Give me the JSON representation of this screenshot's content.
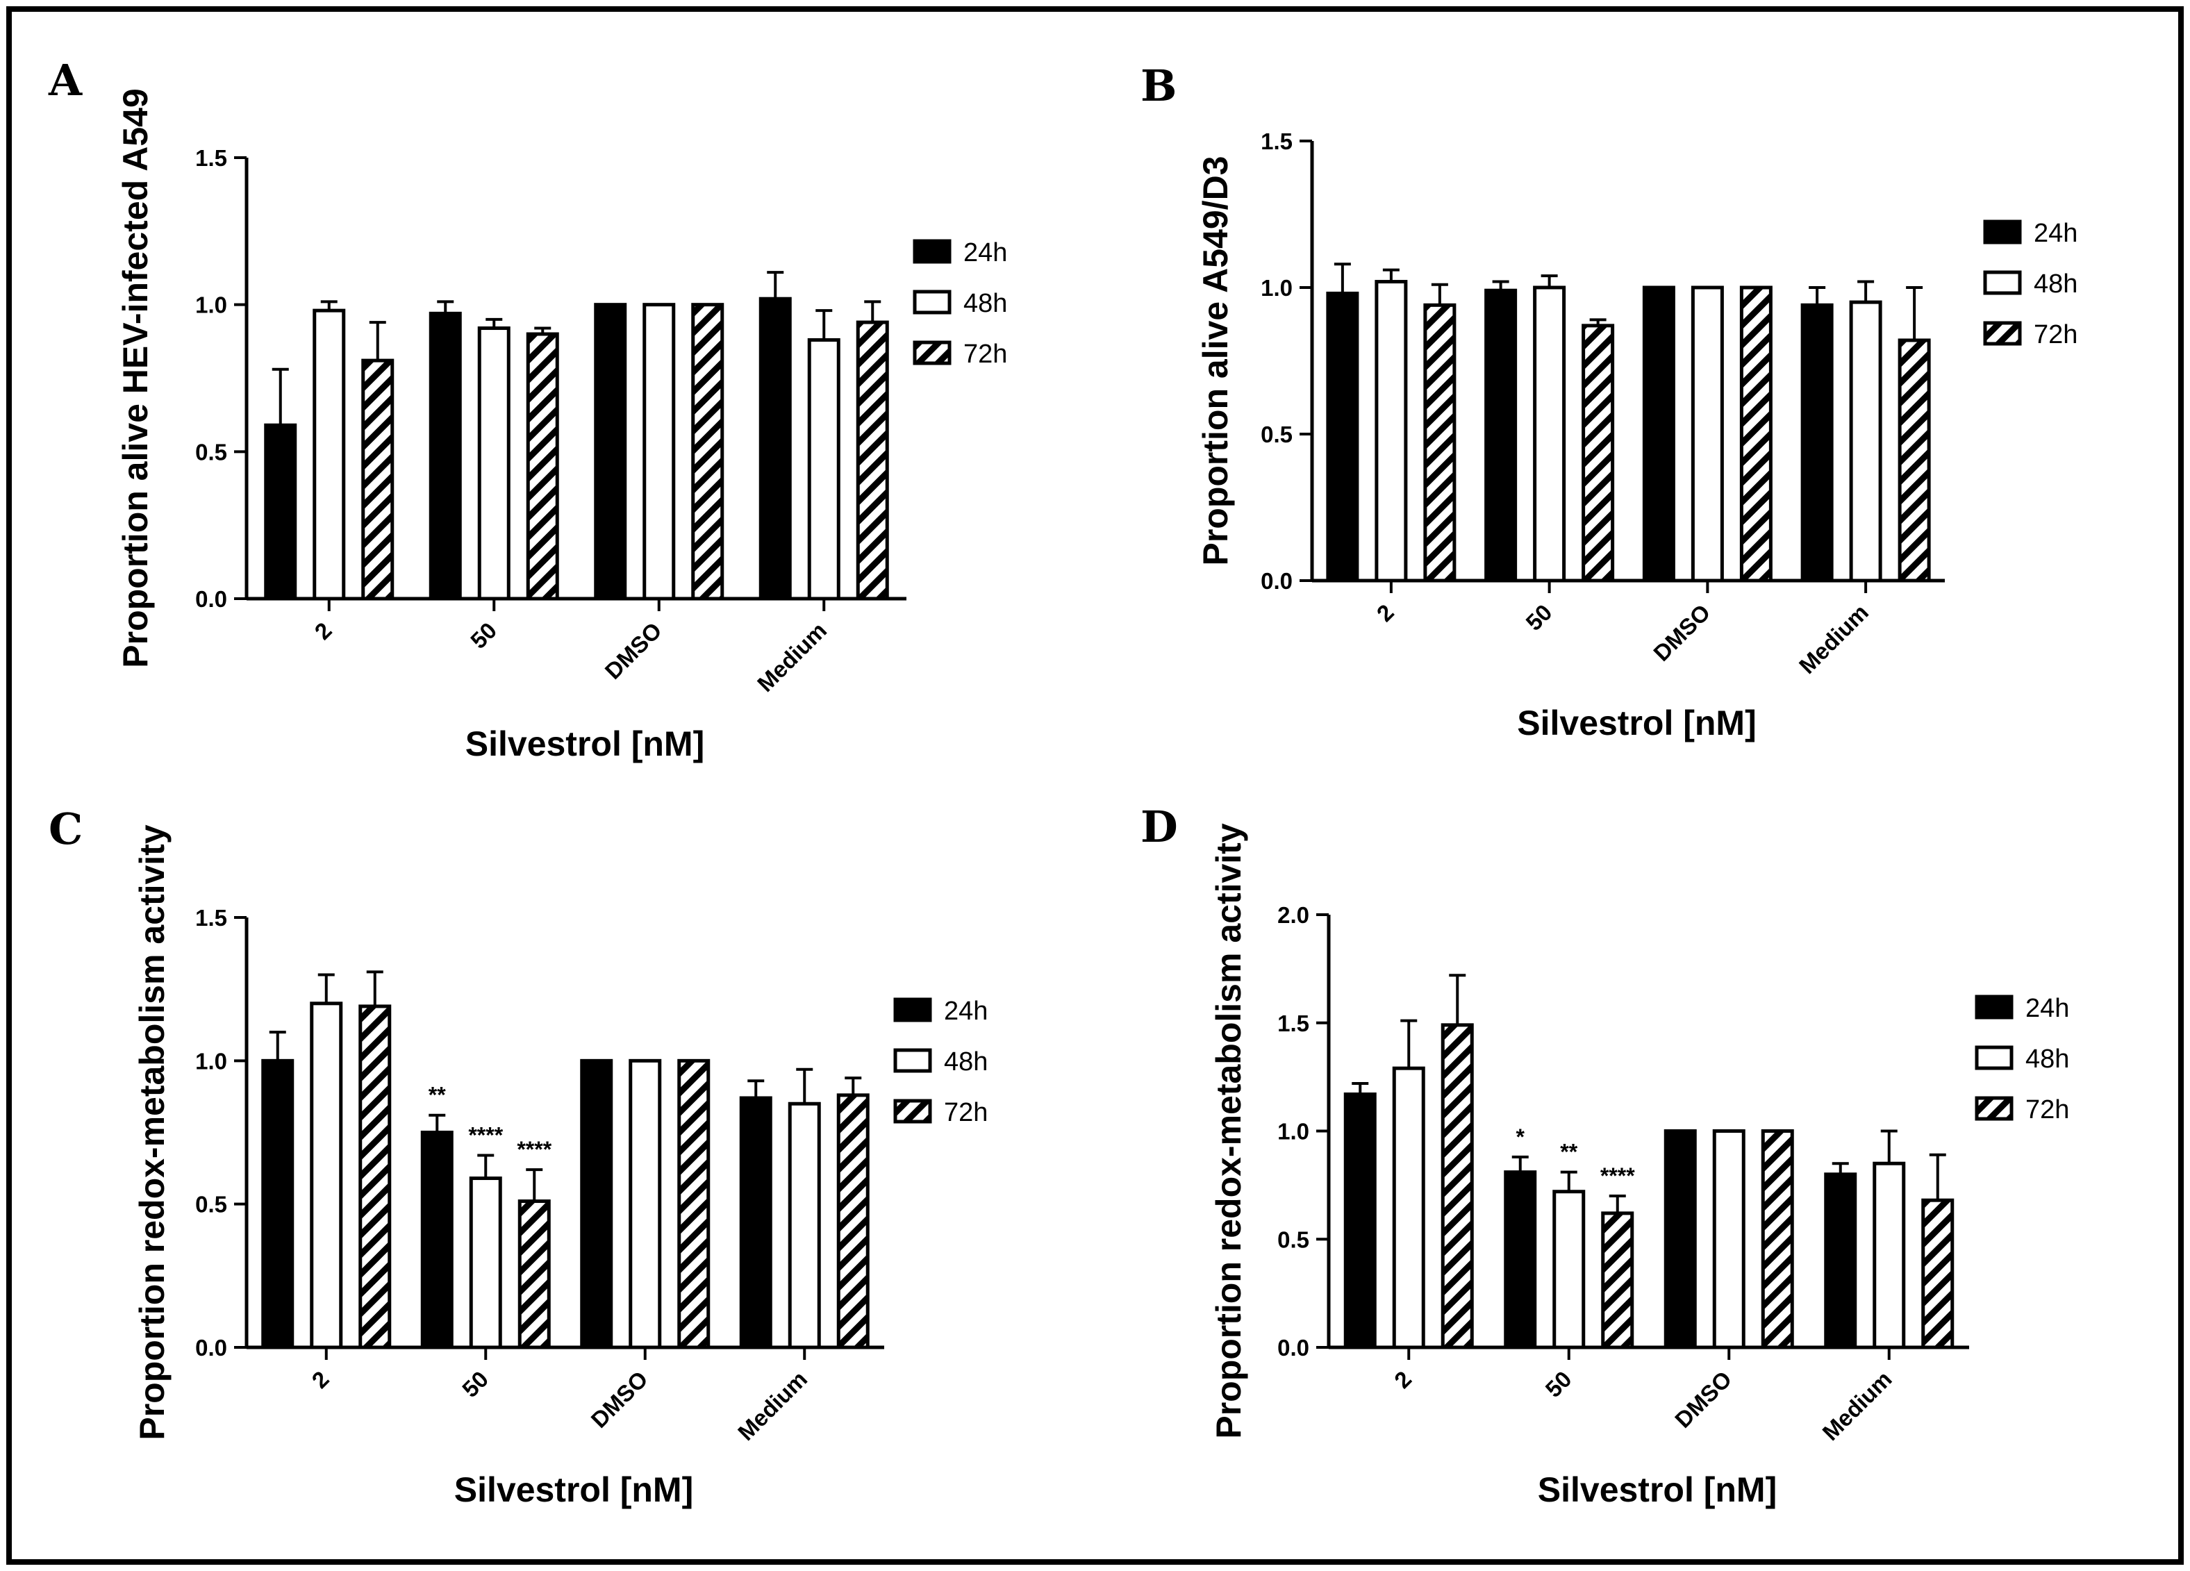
{
  "figure": {
    "border_color": "#000000"
  },
  "chart_data": [
    {
      "panel": "A",
      "type": "bar",
      "ylabel": "Proportion alive HEV-infected A549",
      "xlabel": "Silvestrol [nM]",
      "categories": [
        "2",
        "50",
        "DMSO",
        "Medium"
      ],
      "ylim": [
        0,
        1.5
      ],
      "yticks": [
        0.0,
        0.5,
        1.0,
        1.5
      ],
      "ytick_labels": [
        "0.0",
        "0.5",
        "1.0",
        "1.5"
      ],
      "series": [
        {
          "name": "24h",
          "style": "solid",
          "values": [
            0.59,
            0.97,
            1.0,
            1.02
          ],
          "errors": [
            0.19,
            0.04,
            0.0,
            0.09
          ],
          "significance": [
            "",
            "",
            "",
            ""
          ]
        },
        {
          "name": "48h",
          "style": "open",
          "values": [
            0.98,
            0.92,
            1.0,
            0.88
          ],
          "errors": [
            0.03,
            0.03,
            0.0,
            0.1
          ],
          "significance": [
            "",
            "",
            "",
            ""
          ]
        },
        {
          "name": "72h",
          "style": "hatched",
          "values": [
            0.81,
            0.9,
            1.0,
            0.94
          ],
          "errors": [
            0.13,
            0.02,
            0.0,
            0.07
          ],
          "significance": [
            "",
            "",
            "",
            ""
          ]
        }
      ]
    },
    {
      "panel": "B",
      "type": "bar",
      "ylabel": "Proportion alive A549/D3",
      "xlabel": "Silvestrol [nM]",
      "categories": [
        "2",
        "50",
        "DMSO",
        "Medium"
      ],
      "ylim": [
        0,
        1.5
      ],
      "yticks": [
        0.0,
        0.5,
        1.0,
        1.5
      ],
      "ytick_labels": [
        "0.0",
        "0.5",
        "1.0",
        "1.5"
      ],
      "series": [
        {
          "name": "24h",
          "style": "solid",
          "values": [
            0.98,
            0.99,
            1.0,
            0.94
          ],
          "errors": [
            0.1,
            0.03,
            0.0,
            0.06
          ],
          "significance": [
            "",
            "",
            "",
            ""
          ]
        },
        {
          "name": "48h",
          "style": "open",
          "values": [
            1.02,
            1.0,
            1.0,
            0.95
          ],
          "errors": [
            0.04,
            0.04,
            0.0,
            0.07
          ],
          "significance": [
            "",
            "",
            "",
            ""
          ]
        },
        {
          "name": "72h",
          "style": "hatched",
          "values": [
            0.94,
            0.87,
            1.0,
            0.82
          ],
          "errors": [
            0.07,
            0.02,
            0.0,
            0.18
          ],
          "significance": [
            "",
            "",
            "",
            ""
          ]
        }
      ]
    },
    {
      "panel": "C",
      "type": "bar",
      "ylabel": "Proportion redox-metabolism activity",
      "xlabel": "Silvestrol [nM]",
      "categories": [
        "2",
        "50",
        "DMSO",
        "Medium"
      ],
      "ylim": [
        0,
        1.5
      ],
      "yticks": [
        0.0,
        0.5,
        1.0,
        1.5
      ],
      "ytick_labels": [
        "0.0",
        "0.5",
        "1.0",
        "1.5"
      ],
      "series": [
        {
          "name": "24h",
          "style": "solid",
          "values": [
            1.0,
            0.75,
            1.0,
            0.87
          ],
          "errors": [
            0.1,
            0.06,
            0.0,
            0.06
          ],
          "significance": [
            "",
            "**",
            "",
            ""
          ]
        },
        {
          "name": "48h",
          "style": "open",
          "values": [
            1.2,
            0.59,
            1.0,
            0.85
          ],
          "errors": [
            0.1,
            0.08,
            0.0,
            0.12
          ],
          "significance": [
            "",
            "****",
            "",
            ""
          ]
        },
        {
          "name": "72h",
          "style": "hatched",
          "values": [
            1.19,
            0.51,
            1.0,
            0.88
          ],
          "errors": [
            0.12,
            0.11,
            0.0,
            0.06
          ],
          "significance": [
            "",
            "****",
            "",
            ""
          ]
        }
      ]
    },
    {
      "panel": "D",
      "type": "bar",
      "ylabel": "Proportion redox-metabolism activity",
      "xlabel": "Silvestrol [nM]",
      "categories": [
        "2",
        "50",
        "DMSO",
        "Medium"
      ],
      "ylim": [
        0,
        2.0
      ],
      "yticks": [
        0.0,
        0.5,
        1.0,
        1.5,
        2.0
      ],
      "ytick_labels": [
        "0.0",
        "0.5",
        "1.0",
        "1.5",
        "2.0"
      ],
      "series": [
        {
          "name": "24h",
          "style": "solid",
          "values": [
            1.17,
            0.81,
            1.0,
            0.8
          ],
          "errors": [
            0.05,
            0.07,
            0.0,
            0.05
          ],
          "significance": [
            "",
            "*",
            "",
            ""
          ]
        },
        {
          "name": "48h",
          "style": "open",
          "values": [
            1.29,
            0.72,
            1.0,
            0.85
          ],
          "errors": [
            0.22,
            0.09,
            0.0,
            0.15
          ],
          "significance": [
            "",
            "**",
            "",
            ""
          ]
        },
        {
          "name": "72h",
          "style": "hatched",
          "values": [
            1.49,
            0.62,
            1.0,
            0.68
          ],
          "errors": [
            0.23,
            0.08,
            0.0,
            0.21
          ],
          "significance": [
            "",
            "****",
            "",
            ""
          ]
        }
      ]
    }
  ]
}
